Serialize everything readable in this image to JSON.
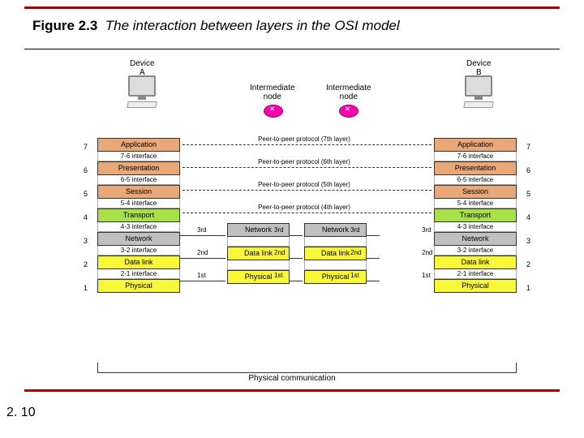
{
  "figure_number": "Figure 2.3",
  "figure_title": "The interaction between layers in the OSI model",
  "page_number": "2. 10",
  "devices": {
    "a": "Device\nA",
    "b": "Device\nB"
  },
  "nodes": {
    "n1": "Intermediate\nnode",
    "n2": "Intermediate\nnode"
  },
  "layers": [
    {
      "n": 7,
      "name": "Application",
      "color": "#e8a878",
      "iface": "7-6 interface",
      "peer": "Peer-to-peer protocol (7th layer)"
    },
    {
      "n": 6,
      "name": "Presentation",
      "color": "#e8a878",
      "iface": "6-5 interface",
      "peer": "Peer-to-peer protocol (6th layer)"
    },
    {
      "n": 5,
      "name": "Session",
      "color": "#e8a878",
      "iface": "5-4 interface",
      "peer": "Peer-to-peer protocol (5th layer)"
    },
    {
      "n": 4,
      "name": "Transport",
      "color": "#a8e048",
      "iface": "4-3 interface",
      "peer": "Peer-to-peer protocol (4th layer)"
    },
    {
      "n": 3,
      "name": "Network",
      "color": "#c0c0c0",
      "iface": "3-2 interface",
      "hop": "3rd"
    },
    {
      "n": 2,
      "name": "Data link",
      "color": "#f8f838",
      "iface": "2-1 interface",
      "hop": "2nd"
    },
    {
      "n": 1,
      "name": "Physical",
      "color": "#f8f838",
      "hop": "1st"
    }
  ],
  "physical_comm": "Physical communication",
  "mid_layers": [
    "Network",
    "Data link",
    "Physical"
  ],
  "mid_colors": [
    "#c0c0c0",
    "#f8f838",
    "#f8f838"
  ]
}
